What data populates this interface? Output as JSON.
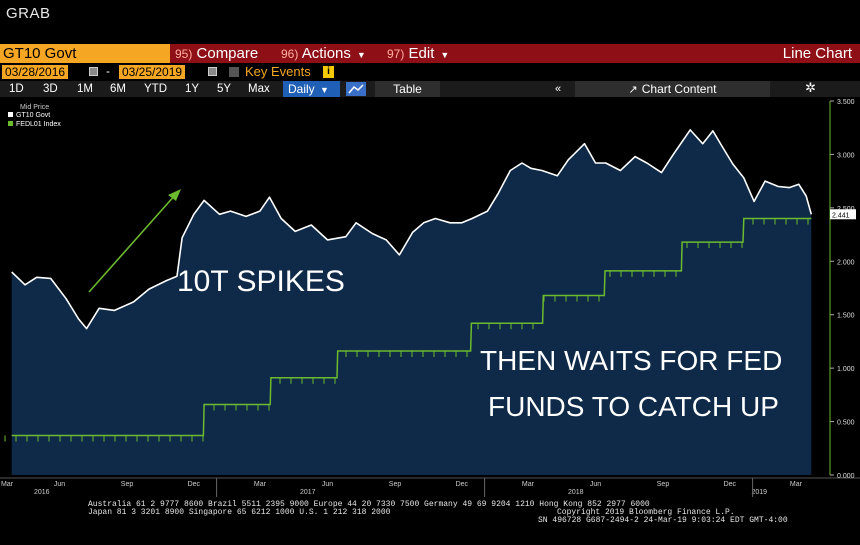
{
  "header": {
    "label": "GRAB"
  },
  "toolbar": {
    "ticker": "GT10 Govt",
    "compare": {
      "num": "95)",
      "label": "Compare"
    },
    "actions": {
      "num": "96)",
      "label": "Actions"
    },
    "edit": {
      "num": "97)",
      "label": "Edit"
    },
    "chart_type": "Line Chart"
  },
  "date_row": {
    "start": "03/28/2016",
    "separator": "-",
    "end": "03/25/2019",
    "key_events": "Key Events",
    "info": "i"
  },
  "range_row": {
    "buttons": [
      "1D",
      "3D",
      "1M",
      "6M",
      "YTD",
      "1Y",
      "5Y",
      "Max"
    ],
    "frequency": "Daily",
    "table": "Table",
    "collapse": "«",
    "chart_content": "Chart Content"
  },
  "legend": {
    "title": "Mid Price",
    "items": [
      "GT10 Govt",
      "FEDL01 Index"
    ]
  },
  "annotations": {
    "spike": "10T SPIKES",
    "wait_line1": "THEN WAITS FOR FED",
    "wait_line2": "FUNDS TO CATCH UP"
  },
  "colors": {
    "background": "#000000",
    "plot_fill": "#0e2a48",
    "gt10_line": "#ffffff",
    "fed_line": "#6cba2e",
    "arrow": "#6cba2e",
    "toolbar": "#8e0f16",
    "accent": "#f5a623"
  },
  "footer": {
    "line1": "Australia 61 2 9777 8600 Brazil 5511 2395 9000 Europe 44 20 7330 7500 Germany 49 69 9204 1210 Hong Kong 852 2977 6000",
    "line2": "Japan 81 3 3201 8900          Singapore 65 6212 1000        U.S. 1 212 318 2000",
    "line3": "Copyright 2019 Bloomberg Finance L.P.",
    "line4": "SN 496728 G687-2494-2 24-Mar-19  9:03:24 EDT  GMT-4:00"
  },
  "chart_data": {
    "type": "line",
    "y_ticks": [
      "3.500",
      "3.000",
      "2.500",
      "2.000",
      "1.500",
      "1.000",
      "0.500",
      "0.000"
    ],
    "ylim": [
      0,
      3.5
    ],
    "x_tick_months": [
      "Mar",
      "Jun",
      "Sep",
      "Dec",
      "Mar",
      "Jun",
      "Sep",
      "Dec",
      "Mar",
      "Jun",
      "Sep",
      "Dec",
      "Mar"
    ],
    "x_year_labels": [
      "2016",
      "2017",
      "2018",
      "2019"
    ],
    "last_value_label": "2.441",
    "series": [
      {
        "name": "GT10 Govt",
        "x": [
          "2016-03-28",
          "2016-04-15",
          "2016-05-01",
          "2016-05-20",
          "2016-06-10",
          "2016-06-27",
          "2016-07-08",
          "2016-07-25",
          "2016-08-15",
          "2016-09-10",
          "2016-10-01",
          "2016-10-25",
          "2016-11-08",
          "2016-11-15",
          "2016-12-01",
          "2016-12-15",
          "2017-01-05",
          "2017-01-20",
          "2017-02-10",
          "2017-03-01",
          "2017-03-14",
          "2017-03-30",
          "2017-04-18",
          "2017-05-10",
          "2017-06-01",
          "2017-06-26",
          "2017-07-10",
          "2017-08-01",
          "2017-08-20",
          "2017-09-07",
          "2017-09-25",
          "2017-10-10",
          "2017-10-26",
          "2017-11-15",
          "2017-12-01",
          "2017-12-15",
          "2018-01-05",
          "2018-01-20",
          "2018-02-05",
          "2018-02-21",
          "2018-03-05",
          "2018-03-20",
          "2018-04-10",
          "2018-04-25",
          "2018-05-17",
          "2018-06-01",
          "2018-06-15",
          "2018-07-05",
          "2018-07-25",
          "2018-08-10",
          "2018-08-30",
          "2018-09-15",
          "2018-10-08",
          "2018-10-25",
          "2018-11-08",
          "2018-11-20",
          "2018-12-05",
          "2018-12-20",
          "2019-01-03",
          "2019-01-18",
          "2019-02-05",
          "2019-02-20",
          "2019-03-05",
          "2019-03-15",
          "2019-03-22"
        ],
        "values": [
          1.9,
          1.78,
          1.85,
          1.84,
          1.65,
          1.46,
          1.37,
          1.56,
          1.54,
          1.62,
          1.74,
          1.82,
          1.86,
          2.22,
          2.44,
          2.57,
          2.44,
          2.47,
          2.42,
          2.47,
          2.6,
          2.4,
          2.28,
          2.34,
          2.2,
          2.23,
          2.36,
          2.26,
          2.2,
          2.06,
          2.27,
          2.36,
          2.4,
          2.36,
          2.36,
          2.4,
          2.47,
          2.64,
          2.85,
          2.92,
          2.87,
          2.85,
          2.8,
          2.95,
          3.1,
          2.92,
          2.92,
          2.85,
          2.98,
          2.92,
          2.83,
          3.0,
          3.23,
          3.1,
          3.22,
          3.08,
          2.91,
          2.78,
          2.56,
          2.75,
          2.7,
          2.69,
          2.72,
          2.61,
          2.44
        ]
      },
      {
        "name": "FEDL01 Index",
        "x": [
          "2016-03-28",
          "2016-12-14",
          "2016-12-15",
          "2017-03-15",
          "2017-03-16",
          "2017-06-14",
          "2017-06-15",
          "2017-12-13",
          "2017-12-14",
          "2018-03-21",
          "2018-03-22",
          "2018-06-13",
          "2018-06-14",
          "2018-09-26",
          "2018-09-27",
          "2018-12-19",
          "2018-12-20",
          "2019-03-22"
        ],
        "values": [
          0.37,
          0.37,
          0.66,
          0.66,
          0.91,
          0.91,
          1.16,
          1.16,
          1.42,
          1.42,
          1.68,
          1.68,
          1.91,
          1.91,
          2.18,
          2.18,
          2.4,
          2.4
        ]
      }
    ]
  }
}
